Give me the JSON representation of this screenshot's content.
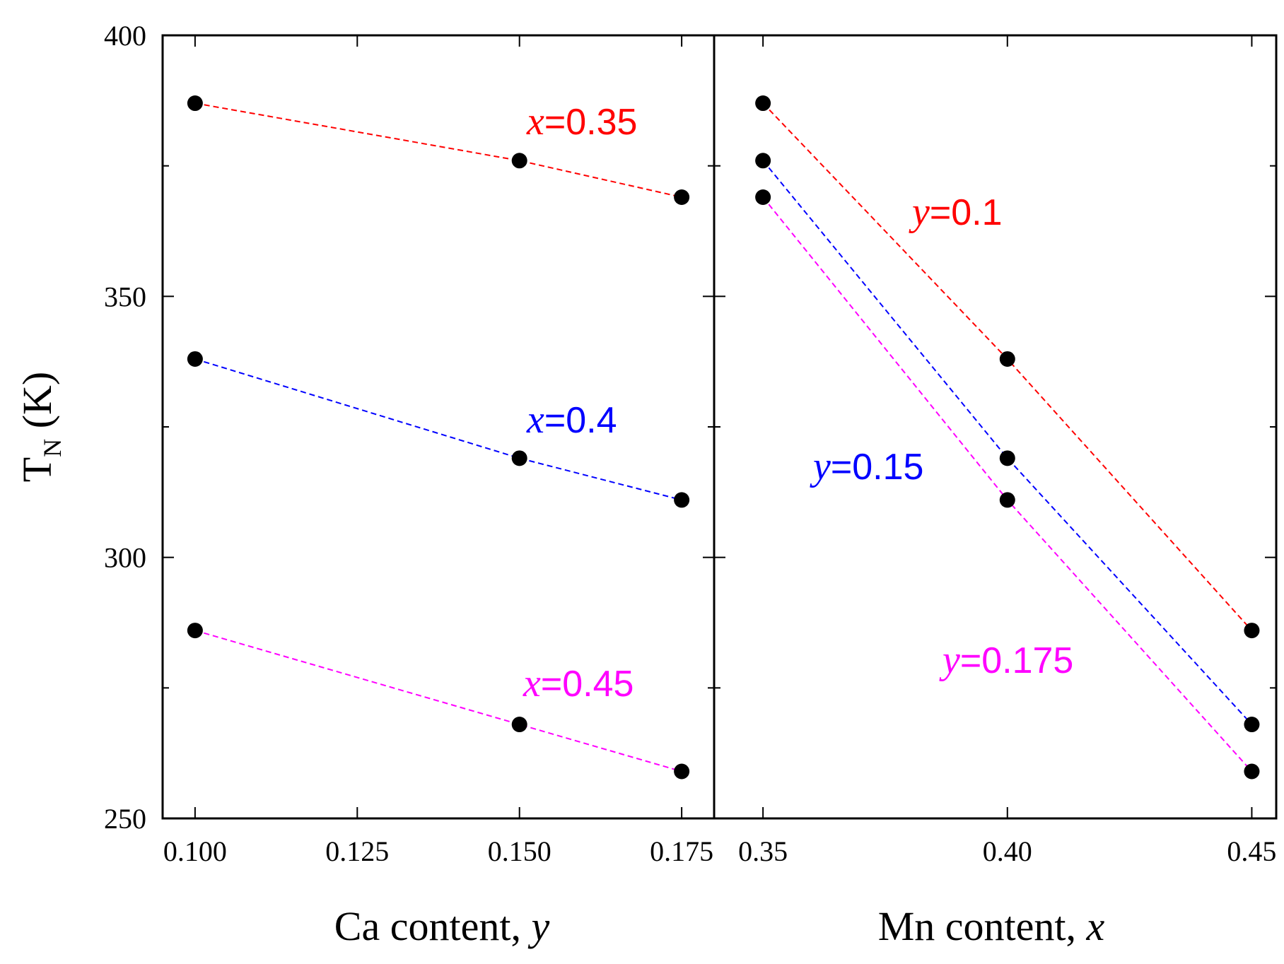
{
  "chart_data": [
    {
      "type": "line",
      "panel": "left",
      "xlabel_text": "Ca content, ",
      "xlabel_var": "y",
      "ylabel_main": "T",
      "ylabel_sub": "N",
      "ylabel_unit": "(K)",
      "xlim": [
        0.095,
        0.18
      ],
      "ylim": [
        250,
        400
      ],
      "xticks": [
        0.1,
        0.125,
        0.15,
        0.175
      ],
      "xtick_labels": [
        "0.100",
        "0.125",
        "0.150",
        "0.175"
      ],
      "yticks": [
        250,
        300,
        350,
        400
      ],
      "ytick_labels": [
        "250",
        "300",
        "350",
        "400"
      ],
      "x": [
        0.1,
        0.15,
        0.175
      ],
      "series": [
        {
          "var": "x",
          "value": "=0.35",
          "color": "#ff0000",
          "values": [
            387,
            376,
            369
          ]
        },
        {
          "var": "x",
          "value": "=0.4",
          "color": "#0000ff",
          "values": [
            338,
            319,
            311
          ]
        },
        {
          "var": "x",
          "value": "=0.45",
          "color": "#ff00ff",
          "values": [
            286,
            268,
            259
          ]
        }
      ]
    },
    {
      "type": "line",
      "panel": "right",
      "xlabel_text": "Mn content, ",
      "xlabel_var": "x",
      "xlim": [
        0.34,
        0.455
      ],
      "ylim": [
        250,
        400
      ],
      "xticks": [
        0.35,
        0.4,
        0.45
      ],
      "xtick_labels": [
        "0.35",
        "0.40",
        "0.45"
      ],
      "yticks": [
        250,
        300,
        350,
        400
      ],
      "x": [
        0.35,
        0.4,
        0.45
      ],
      "series": [
        {
          "var": "y",
          "value": "=0.1",
          "color": "#ff0000",
          "values": [
            387,
            338,
            286
          ]
        },
        {
          "var": "y",
          "value": "=0.15",
          "color": "#0000ff",
          "values": [
            376,
            319,
            268
          ]
        },
        {
          "var": "y",
          "value": "=0.175",
          "color": "#ff00ff",
          "values": [
            369,
            311,
            259
          ]
        }
      ]
    }
  ]
}
